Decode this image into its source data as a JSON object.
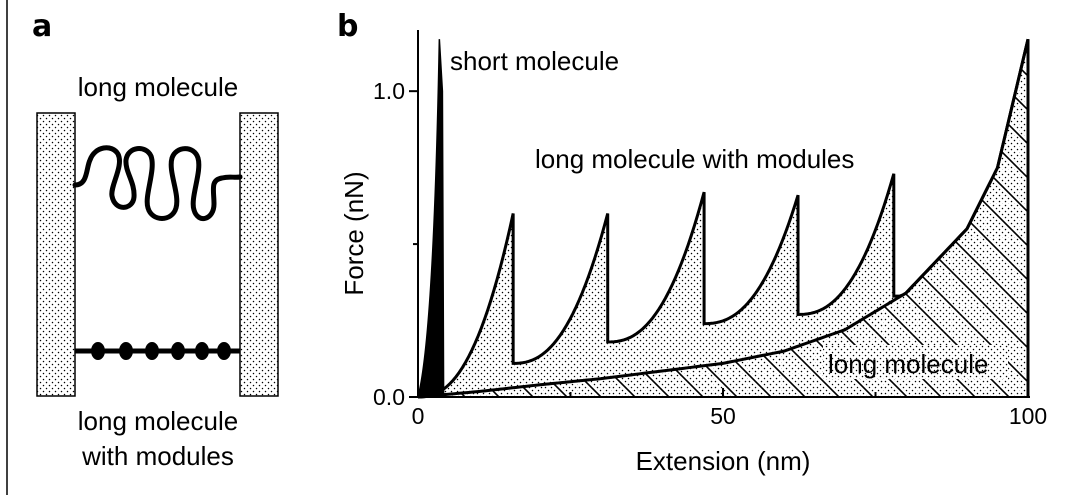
{
  "panel_a": {
    "letter": "a",
    "long_molecule_label": "long molecule",
    "modules_label_line1": "long molecule",
    "modules_label_line2": "with modules"
  },
  "panel_b": {
    "letter": "b",
    "annotations": {
      "short": "short molecule",
      "modules": "long molecule with modules",
      "long": "long molecule"
    }
  },
  "chart_data": {
    "type": "line",
    "xlabel": "Extension (nm)",
    "ylabel": "Force (nN)",
    "xlim": [
      0,
      100
    ],
    "ylim": [
      0,
      1.2
    ],
    "xticks": [
      0,
      50,
      100
    ],
    "xtick_labels": [
      "0",
      "50",
      "100"
    ],
    "yticks": [
      0.0,
      1.0
    ],
    "ytick_labels": [
      "0.0",
      "1.0"
    ],
    "grid": false,
    "series": [
      {
        "name": "short molecule",
        "points": [
          [
            0,
            0
          ],
          [
            3.5,
            1.17
          ],
          [
            4.0,
            1.0
          ],
          [
            4.2,
            0.0
          ]
        ]
      },
      {
        "name": "long molecule with modules",
        "sawtooth": {
          "peaks": [
            [
              15.6,
              0.6
            ],
            [
              31.1,
              0.6
            ],
            [
              46.9,
              0.67
            ],
            [
              62.3,
              0.66
            ],
            [
              78.0,
              0.73
            ]
          ],
          "drops": [
            [
              15.6,
              0.11
            ],
            [
              31.1,
              0.18
            ],
            [
              46.9,
              0.24
            ],
            [
              62.3,
              0.27
            ],
            [
              78.0,
              0.33
            ]
          ]
        }
      },
      {
        "name": "long molecule",
        "points": [
          [
            0,
            0
          ],
          [
            10,
            0.018
          ],
          [
            20,
            0.04
          ],
          [
            30,
            0.06
          ],
          [
            40,
            0.085
          ],
          [
            50,
            0.11
          ],
          [
            60,
            0.15
          ],
          [
            70,
            0.22
          ],
          [
            80,
            0.34
          ],
          [
            90,
            0.55
          ],
          [
            95,
            0.75
          ],
          [
            100,
            1.17
          ]
        ]
      }
    ]
  }
}
